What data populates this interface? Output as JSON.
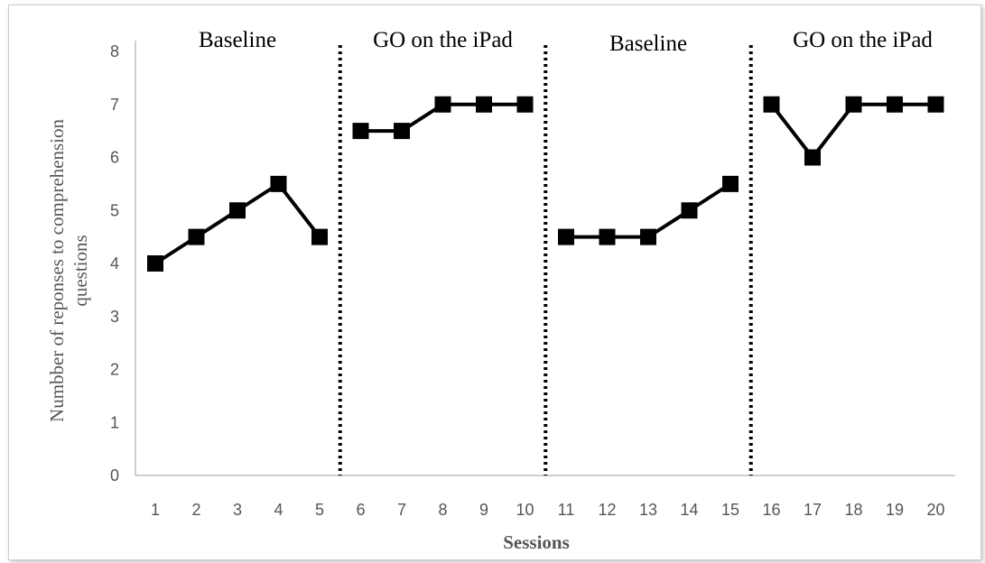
{
  "chart_data": {
    "type": "line",
    "x": [
      1,
      2,
      3,
      4,
      5,
      6,
      7,
      8,
      9,
      10,
      11,
      12,
      13,
      14,
      15,
      16,
      17,
      18,
      19,
      20
    ],
    "segments": [
      {
        "phase": "Baseline",
        "x": [
          1,
          2,
          3,
          4,
          5
        ],
        "values": [
          4,
          4.5,
          5,
          5.5,
          4.5
        ]
      },
      {
        "phase": "GO on the iPad",
        "x": [
          6,
          7,
          8,
          9,
          10
        ],
        "values": [
          6.5,
          6.5,
          7,
          7,
          7
        ]
      },
      {
        "phase": "Baseline",
        "x": [
          11,
          12,
          13,
          14,
          15
        ],
        "values": [
          4.5,
          4.5,
          4.5,
          5,
          5.5
        ]
      },
      {
        "phase": "GO on the iPad",
        "x": [
          16,
          17,
          18,
          19,
          20
        ],
        "values": [
          7,
          6,
          7,
          7,
          7
        ]
      }
    ],
    "phase_labels": [
      "Baseline",
      "GO on the iPad",
      "Baseline",
      "GO on the iPad"
    ],
    "phase_change_after": [
      5,
      10,
      15
    ],
    "xlabel": "Sessions",
    "ylabel_lines": [
      "Numbber of reponses to comprehension",
      "questions"
    ],
    "ylim": [
      0,
      8
    ],
    "yticks": [
      0,
      1,
      2,
      3,
      4,
      5,
      6,
      7,
      8
    ],
    "xticks": [
      1,
      2,
      3,
      4,
      5,
      6,
      7,
      8,
      9,
      10,
      11,
      12,
      13,
      14,
      15,
      16,
      17,
      18,
      19,
      20
    ],
    "marker": "square",
    "line_color": "#000000",
    "grid": false,
    "legend": "none"
  }
}
